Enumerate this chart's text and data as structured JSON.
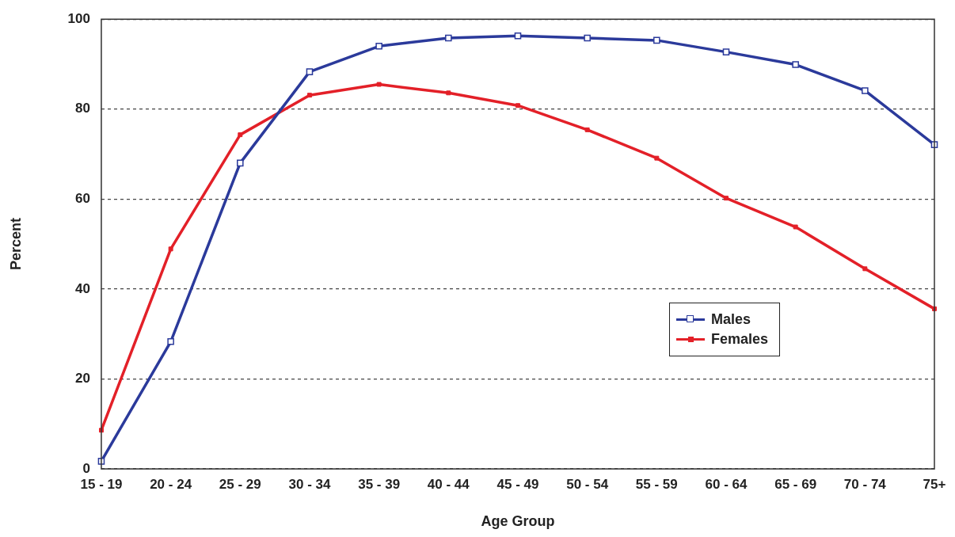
{
  "chart_data": {
    "type": "line",
    "xlabel": "Age Group",
    "ylabel": "Percent",
    "categories": [
      "15 - 19",
      "20 - 24",
      "25 - 29",
      "30 - 34",
      "35 - 39",
      "40 - 44",
      "45 - 49",
      "50 - 54",
      "55 - 59",
      "60 - 64",
      "65 - 69",
      "70 - 74",
      "75+"
    ],
    "series": [
      {
        "name": "Males",
        "color": "#2b3a9b",
        "values": [
          1.7,
          28.3,
          68,
          88.3,
          94,
          95.8,
          96.3,
          95.8,
          95.3,
          92.7,
          89.9,
          84.1,
          72.1
        ]
      },
      {
        "name": "Females",
        "color": "#e32028",
        "values": [
          8.6,
          48.9,
          74.3,
          83.1,
          85.5,
          83.6,
          80.8,
          75.4,
          69.1,
          60.2,
          53.8,
          44.5,
          35.6
        ]
      }
    ],
    "ylim": [
      0,
      100
    ],
    "yticks": [
      0,
      20,
      40,
      60,
      80,
      100
    ],
    "grid": "y",
    "legend": "right",
    "marker": "square",
    "line_style": "solid"
  }
}
